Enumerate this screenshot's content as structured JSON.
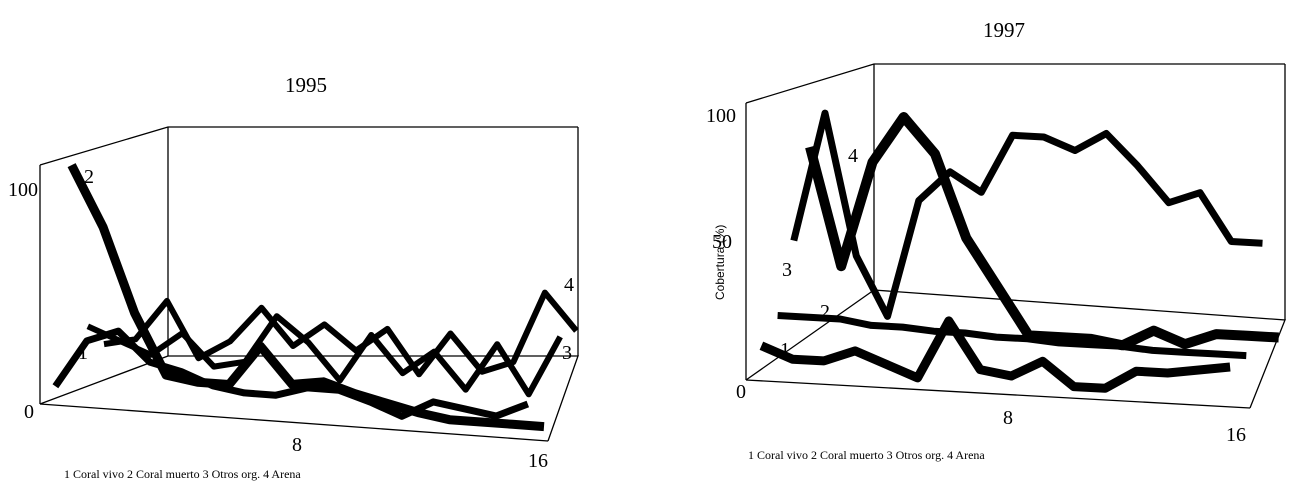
{
  "chart_data": [
    {
      "type": "line",
      "title": "1995",
      "xlabel": "",
      "ylabel": "",
      "x_ticks": [
        "8",
        "16"
      ],
      "y_ticks": [
        "0",
        "100"
      ],
      "xlim": [
        1,
        16
      ],
      "ylim": [
        0,
        100
      ],
      "legend": "1 Coral vivo  2 Coral muerto 3 Otros org. 4 Arena",
      "legend_position": "bottom-left",
      "grid": false,
      "series": [
        {
          "name": "1",
          "values": [
            5,
            25,
            30,
            18,
            15,
            10,
            8,
            8,
            12,
            12,
            8,
            3,
            10,
            8,
            6,
            12
          ]
        },
        {
          "name": "2",
          "values": [
            95,
            70,
            35,
            10,
            8,
            8,
            25,
            10,
            12,
            8,
            5,
            2,
            0,
            0,
            0,
            0
          ]
        },
        {
          "name": "3",
          "values": [
            25,
            20,
            15,
            25,
            12,
            15,
            35,
            25,
            10,
            30,
            15,
            25,
            10,
            30,
            10,
            35
          ]
        },
        {
          "name": "4",
          "values": [
            15,
            18,
            35,
            12,
            20,
            35,
            20,
            30,
            20,
            30,
            12,
            30,
            15,
            20,
            50,
            35
          ]
        }
      ]
    },
    {
      "type": "line",
      "title": "1997",
      "xlabel": "",
      "ylabel": "Cobertura (%)",
      "x_ticks": [
        "8",
        "16"
      ],
      "y_ticks": [
        "0",
        "50",
        "100"
      ],
      "xlim": [
        1,
        16
      ],
      "ylim": [
        0,
        100
      ],
      "legend": "1 Coral vivo  2 Coral muerto 3 Otros org. 4 Arena",
      "legend_position": "bottom-left",
      "grid": false,
      "series": [
        {
          "name": "1",
          "values": [
            10,
            5,
            5,
            10,
            5,
            0,
            25,
            5,
            3,
            10,
            0,
            0,
            8,
            8,
            10,
            12
          ]
        },
        {
          "name": "2",
          "values": [
            18,
            18,
            18,
            16,
            16,
            15,
            15,
            14,
            14,
            13,
            13,
            13,
            12,
            12,
            12,
            12
          ]
        },
        {
          "name": "3",
          "values": [
            45,
            100,
            40,
            15,
            65,
            78,
            70,
            95,
            95,
            90,
            98,
            85,
            70,
            75,
            55,
            55
          ]
        },
        {
          "name": "4",
          "values": [
            80,
            30,
            75,
            95,
            80,
            45,
            25,
            5,
            5,
            5,
            3,
            10,
            5,
            10,
            10,
            10
          ]
        }
      ]
    }
  ]
}
